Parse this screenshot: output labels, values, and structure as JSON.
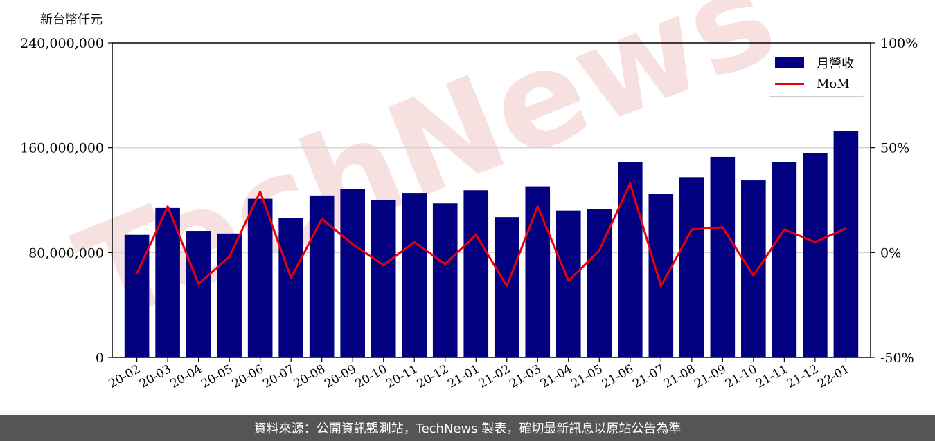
{
  "unit_label": "新台幣仟元",
  "footer": {
    "text": "資料來源：公開資訊觀測站，TechNews 製表，確切最新訊息以原站公告為準",
    "background": "#555555"
  },
  "legend": {
    "revenue": "月營收",
    "mom": "MoM",
    "position": "top-right"
  },
  "colors": {
    "bar": "#000080",
    "line": "#e8000b",
    "grid": "#d3d3d3",
    "watermark": "#f0c8c8"
  },
  "watermark": "TechNews",
  "chart_data": {
    "type": "bar",
    "categories": [
      "20-02",
      "20-03",
      "20-04",
      "20-05",
      "20-06",
      "20-07",
      "20-08",
      "20-09",
      "20-10",
      "20-11",
      "20-12",
      "21-01",
      "21-02",
      "21-03",
      "21-04",
      "21-05",
      "21-06",
      "21-07",
      "21-08",
      "21-09",
      "21-10",
      "21-11",
      "21-12",
      "22-01"
    ],
    "series": [
      {
        "name": "月營收",
        "axis": "left",
        "values": [
          93500000,
          114000000,
          96500000,
          94500000,
          121000000,
          106500000,
          123500000,
          128500000,
          120000000,
          125500000,
          117500000,
          127500000,
          107000000,
          130500000,
          112000000,
          113000000,
          149000000,
          125000000,
          137500000,
          153000000,
          135000000,
          149000000,
          156000000,
          173000000
        ]
      },
      {
        "name": "MoM",
        "axis": "right",
        "type": "line",
        "values": [
          -0.1,
          0.22,
          -0.15,
          -0.02,
          0.29,
          -0.12,
          0.16,
          0.04,
          -0.06,
          0.05,
          -0.055,
          0.085,
          -0.16,
          0.22,
          -0.135,
          0.01,
          0.33,
          -0.16,
          0.11,
          0.12,
          -0.11,
          0.11,
          0.05,
          0.115
        ]
      }
    ],
    "y_left": {
      "min": 0,
      "max": 240000000,
      "ticks": [
        0,
        80000000,
        160000000,
        240000000
      ],
      "tick_labels": [
        "0",
        "80,000,000",
        "160,000,000",
        "240,000,000"
      ]
    },
    "y_right": {
      "min": -0.5,
      "max": 1.0,
      "ticks": [
        -0.5,
        0,
        0.5,
        1.0
      ],
      "tick_labels": [
        "-50%",
        "0%",
        "50%",
        "100%"
      ]
    },
    "grid": true
  }
}
